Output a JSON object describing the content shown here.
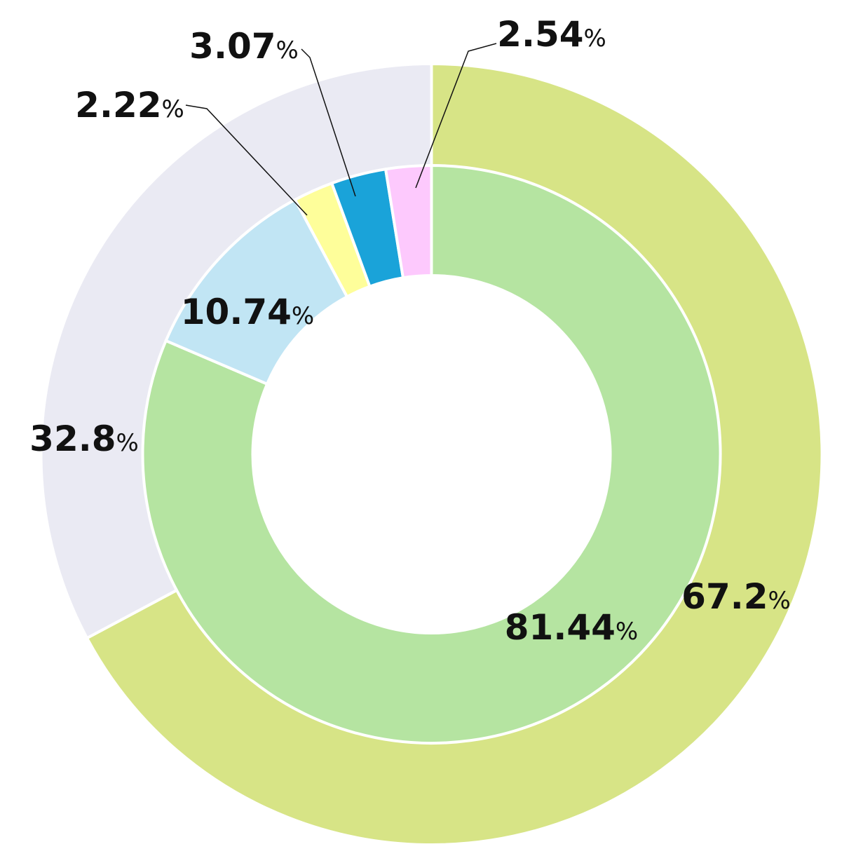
{
  "chart_data": [
    {
      "type": "pie",
      "ring": "outer",
      "slices": [
        {
          "label": "",
          "value": 67.2,
          "value_text": "67.2",
          "unit": "%",
          "color": "#d7e486"
        },
        {
          "label": "",
          "value": 32.8,
          "value_text": "32.8",
          "unit": "%",
          "color": "#eaeaf3"
        }
      ]
    },
    {
      "type": "pie",
      "ring": "inner",
      "slices": [
        {
          "label": "",
          "value": 81.44,
          "value_text": "81.44",
          "unit": "%",
          "color": "#b5e4a1"
        },
        {
          "label": "",
          "value": 10.74,
          "value_text": "10.74",
          "unit": "%",
          "color": "#c1e5f4"
        },
        {
          "label": "",
          "value": 2.22,
          "value_text": "2.22",
          "unit": "%",
          "color": "#fefe9a"
        },
        {
          "label": "",
          "value": 3.07,
          "value_text": "3.07",
          "unit": "%",
          "color": "#1aa3d9"
        },
        {
          "label": "",
          "value": 2.54,
          "value_text": "2.54",
          "unit": "%",
          "color": "#fdc9fd"
        }
      ]
    }
  ]
}
